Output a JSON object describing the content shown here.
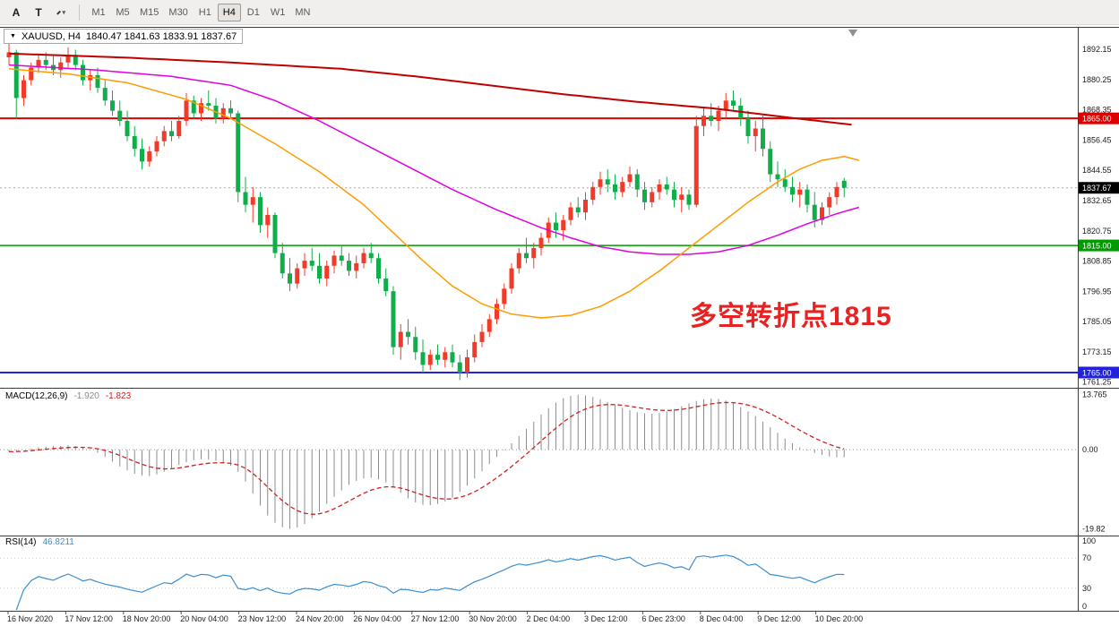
{
  "toolbar": {
    "tools": [
      {
        "name": "pointer",
        "glyph": "A"
      },
      {
        "name": "text",
        "glyph": "T"
      }
    ],
    "draw_tool_caret": "▾",
    "timeframes": [
      "M1",
      "M5",
      "M15",
      "M30",
      "H1",
      "H4",
      "D1",
      "W1",
      "MN"
    ],
    "active_timeframe": "H4"
  },
  "chart_title": {
    "collapse_icon": "▼",
    "symbol_period": "XAUUSD, H4",
    "ohlc": "1840.47 1841.63 1833.91 1837.67"
  },
  "indicators": {
    "macd": {
      "label": "MACD(12,26,9)",
      "main_value": "-1.920",
      "signal_value": "-1.823"
    },
    "rsi": {
      "label": "RSI(14)",
      "value": "46.8211"
    }
  },
  "chart_data": {
    "type": "candlestick",
    "symbol": "XAUUSD",
    "period": "H4",
    "ylim": [
      1759,
      1901
    ],
    "y_axis_labels": [
      "1892.15",
      "1880.25",
      "1868.35",
      "1856.45",
      "1844.55",
      "1832.65",
      "1820.75",
      "1808.85",
      "1796.95",
      "1785.05",
      "1773.15",
      "1761.25"
    ],
    "x_axis_labels": [
      "16 Nov 2020",
      "17 Nov 12:00",
      "18 Nov 20:00",
      "20 Nov 04:00",
      "23 Nov 12:00",
      "24 Nov 20:00",
      "26 Nov 04:00",
      "27 Nov 12:00",
      "30 Nov 20:00",
      "2 Dec 04:00",
      "3 Dec 12:00",
      "6 Dec 23:00",
      "8 Dec 04:00",
      "9 Dec 12:00",
      "10 Dec 20:00"
    ],
    "colors": {
      "bull": "#f23a29",
      "bear": "#0fae4b",
      "ma_red": "#c00000",
      "ma_magenta": "#e000e0",
      "ma_orange": "#ff9c00",
      "macd_hist": "#8c8c8c",
      "macd_signal": "#cc2222",
      "rsi": "#3c8fd0",
      "axis_text": "#1a1a1a",
      "border": "#3c3c3c"
    },
    "hlines": [
      {
        "price": 1865.0,
        "label": "1865.00",
        "color": "#dd0000",
        "width": 2
      },
      {
        "price": 1815.0,
        "label": "1815.00",
        "color": "#009900",
        "width": 1.5
      },
      {
        "price": 1765.0,
        "label": "1765.00",
        "color": "#2222dd",
        "width": 2
      }
    ],
    "current_price": {
      "value": 1837.67,
      "label": "1837.67",
      "badge_color": "#000000",
      "line_color": "#aaaaaa"
    },
    "annotation": {
      "text": "多空转折点1815",
      "color": "#e62222"
    },
    "candles": [
      [
        1889,
        1895,
        1886,
        1891
      ],
      [
        1891,
        1892,
        1865,
        1873
      ],
      [
        1873,
        1882,
        1870,
        1880
      ],
      [
        1880,
        1887,
        1878,
        1885
      ],
      [
        1885,
        1890,
        1883,
        1888
      ],
      [
        1888,
        1891,
        1884,
        1886
      ],
      [
        1886,
        1890,
        1882,
        1884
      ],
      [
        1884,
        1889,
        1881,
        1887
      ],
      [
        1887,
        1893,
        1885,
        1890
      ],
      [
        1890,
        1892,
        1884,
        1886
      ],
      [
        1886,
        1888,
        1878,
        1880
      ],
      [
        1880,
        1884,
        1876,
        1882
      ],
      [
        1882,
        1885,
        1875,
        1877
      ],
      [
        1877,
        1880,
        1870,
        1872
      ],
      [
        1872,
        1876,
        1866,
        1868
      ],
      [
        1868,
        1872,
        1862,
        1864
      ],
      [
        1864,
        1868,
        1856,
        1858
      ],
      [
        1858,
        1862,
        1850,
        1853
      ],
      [
        1853,
        1857,
        1845,
        1848
      ],
      [
        1848,
        1854,
        1846,
        1852
      ],
      [
        1852,
        1858,
        1850,
        1856
      ],
      [
        1856,
        1862,
        1854,
        1860
      ],
      [
        1860,
        1864,
        1856,
        1858
      ],
      [
        1858,
        1866,
        1857,
        1864
      ],
      [
        1864,
        1875,
        1862,
        1872
      ],
      [
        1872,
        1874,
        1865,
        1867
      ],
      [
        1867,
        1873,
        1864,
        1871
      ],
      [
        1871,
        1876,
        1868,
        1870
      ],
      [
        1870,
        1873,
        1863,
        1865
      ],
      [
        1865,
        1871,
        1863,
        1869
      ],
      [
        1869,
        1872,
        1865,
        1867
      ],
      [
        1867,
        1868,
        1832,
        1836
      ],
      [
        1836,
        1842,
        1828,
        1831
      ],
      [
        1831,
        1838,
        1824,
        1834
      ],
      [
        1834,
        1836,
        1820,
        1823
      ],
      [
        1823,
        1830,
        1818,
        1827
      ],
      [
        1827,
        1828,
        1810,
        1812
      ],
      [
        1812,
        1816,
        1802,
        1804
      ],
      [
        1804,
        1810,
        1797,
        1800
      ],
      [
        1800,
        1808,
        1798,
        1806
      ],
      [
        1806,
        1812,
        1803,
        1809
      ],
      [
        1809,
        1814,
        1805,
        1807
      ],
      [
        1807,
        1812,
        1800,
        1802
      ],
      [
        1802,
        1809,
        1799,
        1807
      ],
      [
        1807,
        1813,
        1804,
        1811
      ],
      [
        1811,
        1815,
        1807,
        1809
      ],
      [
        1809,
        1812,
        1803,
        1805
      ],
      [
        1805,
        1811,
        1802,
        1808
      ],
      [
        1808,
        1814,
        1806,
        1812
      ],
      [
        1812,
        1816,
        1808,
        1810
      ],
      [
        1810,
        1812,
        1800,
        1802
      ],
      [
        1802,
        1806,
        1795,
        1797
      ],
      [
        1797,
        1799,
        1772,
        1775
      ],
      [
        1775,
        1784,
        1770,
        1781
      ],
      [
        1781,
        1786,
        1776,
        1779
      ],
      [
        1779,
        1783,
        1770,
        1773
      ],
      [
        1773,
        1778,
        1765,
        1768
      ],
      [
        1768,
        1774,
        1766,
        1772
      ],
      [
        1772,
        1776,
        1768,
        1770
      ],
      [
        1770,
        1775,
        1767,
        1773
      ],
      [
        1773,
        1776,
        1767,
        1769
      ],
      [
        1769,
        1772,
        1762,
        1765
      ],
      [
        1765,
        1774,
        1763,
        1771
      ],
      [
        1771,
        1780,
        1769,
        1777
      ],
      [
        1777,
        1784,
        1775,
        1781
      ],
      [
        1781,
        1788,
        1779,
        1786
      ],
      [
        1786,
        1794,
        1784,
        1792
      ],
      [
        1792,
        1800,
        1790,
        1798
      ],
      [
        1798,
        1808,
        1796,
        1806
      ],
      [
        1806,
        1814,
        1804,
        1812
      ],
      [
        1812,
        1818,
        1808,
        1810
      ],
      [
        1810,
        1816,
        1806,
        1814
      ],
      [
        1814,
        1820,
        1811,
        1818
      ],
      [
        1818,
        1826,
        1816,
        1824
      ],
      [
        1824,
        1828,
        1818,
        1821
      ],
      [
        1821,
        1827,
        1817,
        1825
      ],
      [
        1825,
        1832,
        1823,
        1830
      ],
      [
        1830,
        1834,
        1826,
        1828
      ],
      [
        1828,
        1836,
        1825,
        1833
      ],
      [
        1833,
        1840,
        1831,
        1838
      ],
      [
        1838,
        1844,
        1835,
        1841
      ],
      [
        1841,
        1845,
        1836,
        1839
      ],
      [
        1839,
        1843,
        1833,
        1836
      ],
      [
        1836,
        1842,
        1834,
        1840
      ],
      [
        1840,
        1846,
        1838,
        1843
      ],
      [
        1843,
        1845,
        1834,
        1837
      ],
      [
        1837,
        1840,
        1829,
        1832
      ],
      [
        1832,
        1838,
        1830,
        1836
      ],
      [
        1836,
        1841,
        1833,
        1839
      ],
      [
        1839,
        1842,
        1835,
        1837
      ],
      [
        1837,
        1840,
        1830,
        1833
      ],
      [
        1833,
        1838,
        1828,
        1835
      ],
      [
        1835,
        1837,
        1829,
        1831
      ],
      [
        1831,
        1866,
        1830,
        1862
      ],
      [
        1862,
        1869,
        1858,
        1866
      ],
      [
        1866,
        1871,
        1862,
        1864
      ],
      [
        1864,
        1870,
        1860,
        1868
      ],
      [
        1868,
        1875,
        1865,
        1872
      ],
      [
        1872,
        1876,
        1868,
        1870
      ],
      [
        1870,
        1873,
        1862,
        1865
      ],
      [
        1865,
        1868,
        1855,
        1858
      ],
      [
        1858,
        1864,
        1852,
        1861
      ],
      [
        1861,
        1866,
        1850,
        1853
      ],
      [
        1853,
        1856,
        1840,
        1843
      ],
      [
        1843,
        1848,
        1838,
        1841
      ],
      [
        1841,
        1845,
        1836,
        1838
      ],
      [
        1838,
        1842,
        1832,
        1835
      ],
      [
        1835,
        1840,
        1830,
        1837
      ],
      [
        1837,
        1839,
        1828,
        1831
      ],
      [
        1831,
        1836,
        1822,
        1825
      ],
      [
        1825,
        1832,
        1823,
        1830
      ],
      [
        1830,
        1836,
        1827,
        1834
      ],
      [
        1834,
        1840,
        1831,
        1838
      ],
      [
        1840.47,
        1841.63,
        1833.91,
        1837.67
      ]
    ],
    "moving_averages": [
      {
        "name": "ma-red-line",
        "color_key": "ma_red",
        "width": 2,
        "points": [
          [
            0,
            1890.5
          ],
          [
            15,
            1889
          ],
          [
            30,
            1887
          ],
          [
            45,
            1884.5
          ],
          [
            55,
            1881.5
          ],
          [
            65,
            1878
          ],
          [
            75,
            1874.5
          ],
          [
            85,
            1871.5
          ],
          [
            95,
            1869
          ],
          [
            105,
            1865.5
          ],
          [
            114,
            1862.5
          ]
        ]
      },
      {
        "name": "ma-magenta-line",
        "color_key": "ma_magenta",
        "width": 1.5,
        "points": [
          [
            0,
            1886
          ],
          [
            12,
            1884
          ],
          [
            22,
            1881.5
          ],
          [
            30,
            1878
          ],
          [
            36,
            1872
          ],
          [
            42,
            1864
          ],
          [
            48,
            1855
          ],
          [
            54,
            1846
          ],
          [
            60,
            1837
          ],
          [
            66,
            1829
          ],
          [
            72,
            1822
          ],
          [
            76,
            1818
          ],
          [
            80,
            1814.5
          ],
          [
            84,
            1812.5
          ],
          [
            88,
            1811.5
          ],
          [
            92,
            1811.5
          ],
          [
            96,
            1812.5
          ],
          [
            100,
            1815
          ],
          [
            104,
            1819
          ],
          [
            108,
            1823.5
          ],
          [
            112,
            1827.5
          ],
          [
            115,
            1830
          ]
        ]
      },
      {
        "name": "ma-orange-line",
        "color_key": "ma_orange",
        "width": 1.5,
        "points": [
          [
            0,
            1884.5
          ],
          [
            8,
            1882.5
          ],
          [
            16,
            1879
          ],
          [
            24,
            1872.5
          ],
          [
            30,
            1865
          ],
          [
            36,
            1855
          ],
          [
            42,
            1844
          ],
          [
            48,
            1831
          ],
          [
            52,
            1820
          ],
          [
            56,
            1809
          ],
          [
            60,
            1799
          ],
          [
            64,
            1792
          ],
          [
            68,
            1788
          ],
          [
            72,
            1786.5
          ],
          [
            76,
            1787.5
          ],
          [
            80,
            1791
          ],
          [
            84,
            1797
          ],
          [
            88,
            1805
          ],
          [
            92,
            1814
          ],
          [
            96,
            1823
          ],
          [
            100,
            1832
          ],
          [
            104,
            1840
          ],
          [
            107,
            1845
          ],
          [
            110,
            1848.5
          ],
          [
            113,
            1850
          ],
          [
            115,
            1848.5
          ]
        ]
      }
    ],
    "macd": {
      "signal_period": 9,
      "ylim": [
        -21.5,
        15.5
      ],
      "scale_labels": [
        "13.765",
        "0.00",
        "-19.82"
      ],
      "scale_values": [
        13.765,
        0,
        -19.82
      ],
      "hist": [
        -0.5,
        -0.3,
        0,
        0.3,
        0.6,
        0.8,
        0.9,
        1,
        1.1,
        0.9,
        0.5,
        0,
        -0.8,
        -1.8,
        -3,
        -4.2,
        -5.2,
        -6,
        -6.5,
        -6.6,
        -6.2,
        -5.5,
        -4.6,
        -3.8,
        -3.1,
        -2.6,
        -2.4,
        -2.5,
        -2.8,
        -3.2,
        -4,
        -5.5,
        -8,
        -11,
        -14,
        -16.5,
        -18.3,
        -19.4,
        -19.82,
        -19.5,
        -18.6,
        -17.2,
        -15.5,
        -13.6,
        -11.8,
        -10.2,
        -8.8,
        -7.8,
        -7.2,
        -7,
        -7.4,
        -8.2,
        -9.4,
        -10.8,
        -12.2,
        -13.2,
        -13.8,
        -13.9,
        -13.6,
        -13,
        -12,
        -10.6,
        -9,
        -7.2,
        -5.4,
        -3.6,
        -1.8,
        -0.2,
        1.6,
        3.4,
        5.2,
        7,
        8.8,
        10.4,
        11.8,
        12.9,
        13.5,
        13.765,
        13.6,
        13.2,
        12.6,
        11.9,
        11.2,
        10.5,
        9.9,
        9.4,
        9.1,
        9,
        9.2,
        9.6,
        10.2,
        10.9,
        11.6,
        12.2,
        12.6,
        12.8,
        12.7,
        12.3,
        11.6,
        10.7,
        9.6,
        8.4,
        7,
        5.6,
        4.2,
        2.8,
        1.6,
        0.6,
        -0.2,
        -0.8,
        -1.3,
        -1.7,
        -1.9,
        -1.92
      ]
    },
    "rsi": {
      "period": 14,
      "levels": [
        70,
        30
      ],
      "scale_labels": [
        "100",
        "70",
        "30",
        "0"
      ],
      "scale_values": [
        100,
        70,
        30,
        0
      ]
    }
  }
}
